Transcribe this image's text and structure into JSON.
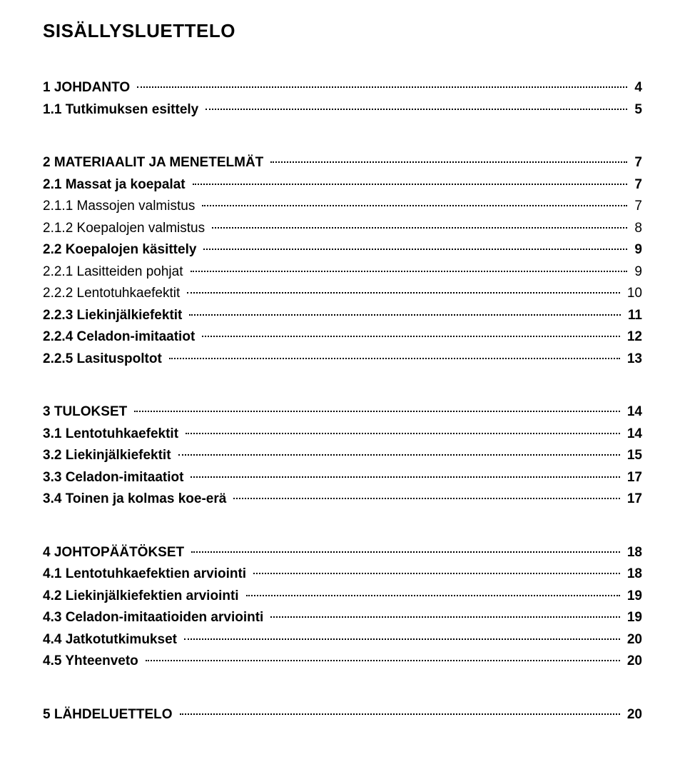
{
  "title": "SISÄLLYSLUETTELO",
  "styles": {
    "font_family": "Arial",
    "title_fontsize": 26,
    "entry_fontsize": 19,
    "text_color": "#000000",
    "background_color": "#ffffff",
    "leader_style": "dotted"
  },
  "entries": [
    {
      "label": "1 JOHDANTO",
      "page": "4",
      "bold": true,
      "indent": 0,
      "gap_after": "none"
    },
    {
      "label": "1.1 Tutkimuksen esittely",
      "page": "5",
      "bold": true,
      "indent": 1,
      "gap_after": "large"
    },
    {
      "label": "2 MATERIAALIT JA MENETELMÄT",
      "page": "7",
      "bold": true,
      "indent": 0,
      "gap_after": "none"
    },
    {
      "label": "2.1 Massat ja koepalat",
      "page": "7",
      "bold": true,
      "indent": 1,
      "gap_after": "none"
    },
    {
      "label": "2.1.1 Massojen valmistus",
      "page": "7",
      "bold": false,
      "indent": 2,
      "gap_after": "none"
    },
    {
      "label": "2.1.2 Koepalojen valmistus",
      "page": "8",
      "bold": false,
      "indent": 2,
      "gap_after": "none"
    },
    {
      "label": "2.2 Koepalojen käsittely",
      "page": "9",
      "bold": true,
      "indent": 1,
      "gap_after": "none"
    },
    {
      "label": "2.2.1 Lasitteiden pohjat",
      "page": "9",
      "bold": false,
      "indent": 2,
      "gap_after": "none"
    },
    {
      "label": "2.2.2 Lentotuhkaefektit",
      "page": "10",
      "bold": false,
      "indent": 2,
      "gap_after": "none"
    },
    {
      "label": "2.2.3 Liekinjälkiefektit",
      "page": "11",
      "bold": true,
      "indent": 2,
      "gap_after": "none"
    },
    {
      "label": "2.2.4 Celadon-imitaatiot",
      "page": "12",
      "bold": true,
      "indent": 2,
      "gap_after": "none"
    },
    {
      "label": "2.2.5 Lasituspoltot",
      "page": "13",
      "bold": true,
      "indent": 2,
      "gap_after": "large"
    },
    {
      "label": "3 TULOKSET",
      "page": "14",
      "bold": true,
      "indent": 0,
      "gap_after": "none"
    },
    {
      "label": "3.1 Lentotuhkaefektit",
      "page": "14",
      "bold": true,
      "indent": 1,
      "gap_after": "none"
    },
    {
      "label": "3.2 Liekinjälkiefektit",
      "page": "15",
      "bold": true,
      "indent": 1,
      "gap_after": "none"
    },
    {
      "label": "3.3 Celadon-imitaatiot",
      "page": "17",
      "bold": true,
      "indent": 1,
      "gap_after": "none"
    },
    {
      "label": "3.4 Toinen ja kolmas koe-erä",
      "page": "17",
      "bold": true,
      "indent": 1,
      "gap_after": "large"
    },
    {
      "label": "4 JOHTOPÄÄTÖKSET",
      "page": "18",
      "bold": true,
      "indent": 0,
      "gap_after": "none"
    },
    {
      "label": "4.1 Lentotuhkaefektien arviointi",
      "page": "18",
      "bold": true,
      "indent": 1,
      "gap_after": "none"
    },
    {
      "label": "4.2 Liekinjälkiefektien arviointi",
      "page": "19",
      "bold": true,
      "indent": 1,
      "gap_after": "none"
    },
    {
      "label": "4.3 Celadon-imitaatioiden arviointi",
      "page": "19",
      "bold": true,
      "indent": 1,
      "gap_after": "none"
    },
    {
      "label": "4.4 Jatkotutkimukset",
      "page": "20",
      "bold": true,
      "indent": 1,
      "gap_after": "none"
    },
    {
      "label": "4.5 Yhteenveto",
      "page": "20",
      "bold": true,
      "indent": 1,
      "gap_after": "large"
    },
    {
      "label": "5 LÄHDELUETTELO",
      "page": "20",
      "bold": true,
      "indent": 0,
      "gap_after": "none"
    }
  ]
}
